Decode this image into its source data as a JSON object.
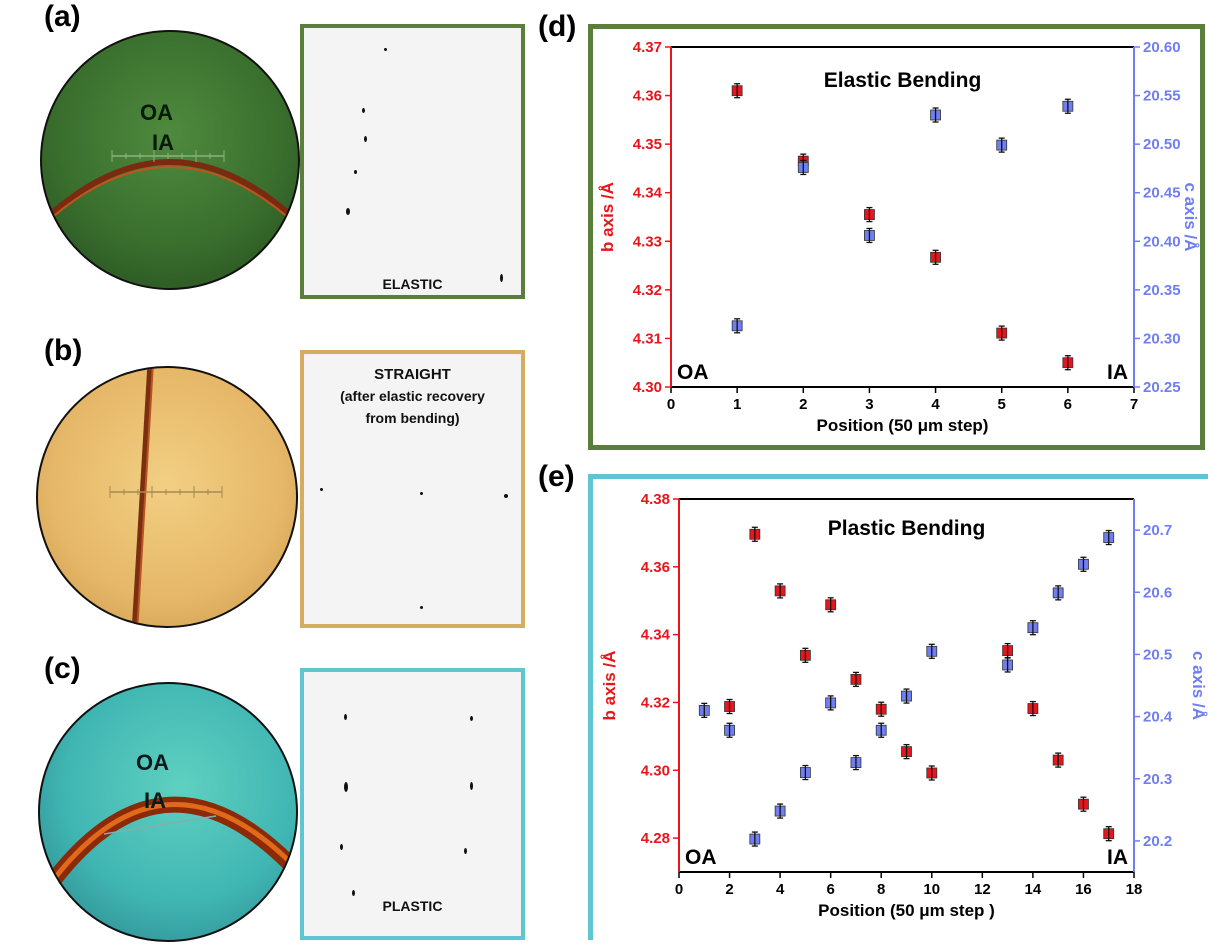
{
  "labels": {
    "a": "(a)",
    "b": "(b)",
    "c": "(c)",
    "d": "(d)",
    "e": "(e)"
  },
  "colors": {
    "green_frame": "#5a7f3c",
    "tan_frame": "#d6ad60",
    "cyan_frame": "#5fc6cf",
    "b_axis": "#e8151b",
    "c_axis": "#6f7ef2"
  },
  "micrographs": {
    "a": {
      "oa": "OA",
      "ia": "IA"
    },
    "b": {},
    "c": {
      "oa": "OA",
      "ia": "IA"
    }
  },
  "diffraction": {
    "elastic": "ELASTIC",
    "straight_line1": "STRAIGHT",
    "straight_line2": "(after elastic  recovery",
    "straight_line3": "from bending)",
    "plastic": "PLASTIC"
  },
  "chart_data": [
    {
      "type": "scatter",
      "title": "Elastic Bending",
      "xlabel": "Position (50 μm step)",
      "ylabel_left": "b axis /Å",
      "ylabel_right": "c axis /Å",
      "xlim": [
        0,
        7
      ],
      "ylim_left": [
        4.3,
        4.37
      ],
      "ylim_right": [
        20.25,
        20.6
      ],
      "xticks": [
        "0",
        "1",
        "2",
        "3",
        "4",
        "5",
        "6",
        "7"
      ],
      "yticks_left": [
        "4.30",
        "4.31",
        "4.32",
        "4.33",
        "4.34",
        "4.35",
        "4.36",
        "4.37"
      ],
      "yticks_right": [
        "20.25",
        "20.30",
        "20.35",
        "20.40",
        "20.45",
        "20.50",
        "20.55",
        "20.60"
      ],
      "corner_left": "OA",
      "corner_right": "IA",
      "series": [
        {
          "axis": "left",
          "x": [
            1,
            2,
            3,
            4,
            5,
            6
          ],
          "values": [
            4.361,
            4.3465,
            4.3355,
            4.3267,
            4.3111,
            4.305
          ]
        },
        {
          "axis": "right",
          "x": [
            1,
            2,
            3,
            4,
            5,
            6
          ],
          "values": [
            20.313,
            20.476,
            20.406,
            20.53,
            20.499,
            20.539
          ]
        }
      ]
    },
    {
      "type": "scatter",
      "title": "Plastic Bending",
      "xlabel": "Position (50 μm step )",
      "ylabel_left": "b axis /Å",
      "ylabel_right": "c axis /Å",
      "xlim": [
        0,
        18
      ],
      "ylim_left": [
        4.27,
        4.38
      ],
      "ylim_right": [
        20.15,
        20.75
      ],
      "xticks": [
        "0",
        "2",
        "4",
        "6",
        "8",
        "10",
        "12",
        "14",
        "16",
        "18"
      ],
      "yticks_left": [
        "4.28",
        "4.30",
        "4.32",
        "4.34",
        "4.36",
        "4.38"
      ],
      "yticks_right": [
        "20.2",
        "20.3",
        "20.4",
        "20.5",
        "20.6",
        "20.7"
      ],
      "corner_left": "OA",
      "corner_right": "IA",
      "series": [
        {
          "axis": "left",
          "x": [
            2,
            3,
            4,
            5,
            6,
            7,
            8,
            9,
            10,
            13,
            14,
            15,
            16,
            17
          ],
          "values": [
            4.3188,
            4.3696,
            4.3529,
            4.3339,
            4.3488,
            4.3268,
            4.318,
            4.3055,
            4.2992,
            4.3353,
            4.3182,
            4.303,
            4.29,
            4.2813
          ]
        },
        {
          "axis": "right",
          "x": [
            1,
            2,
            3,
            4,
            5,
            6,
            7,
            8,
            9,
            10,
            13,
            14,
            15,
            16,
            17
          ],
          "values": [
            20.41,
            20.378,
            20.203,
            20.248,
            20.31,
            20.422,
            20.326,
            20.378,
            20.433,
            20.505,
            20.483,
            20.543,
            20.599,
            20.645,
            20.688
          ]
        }
      ]
    }
  ]
}
